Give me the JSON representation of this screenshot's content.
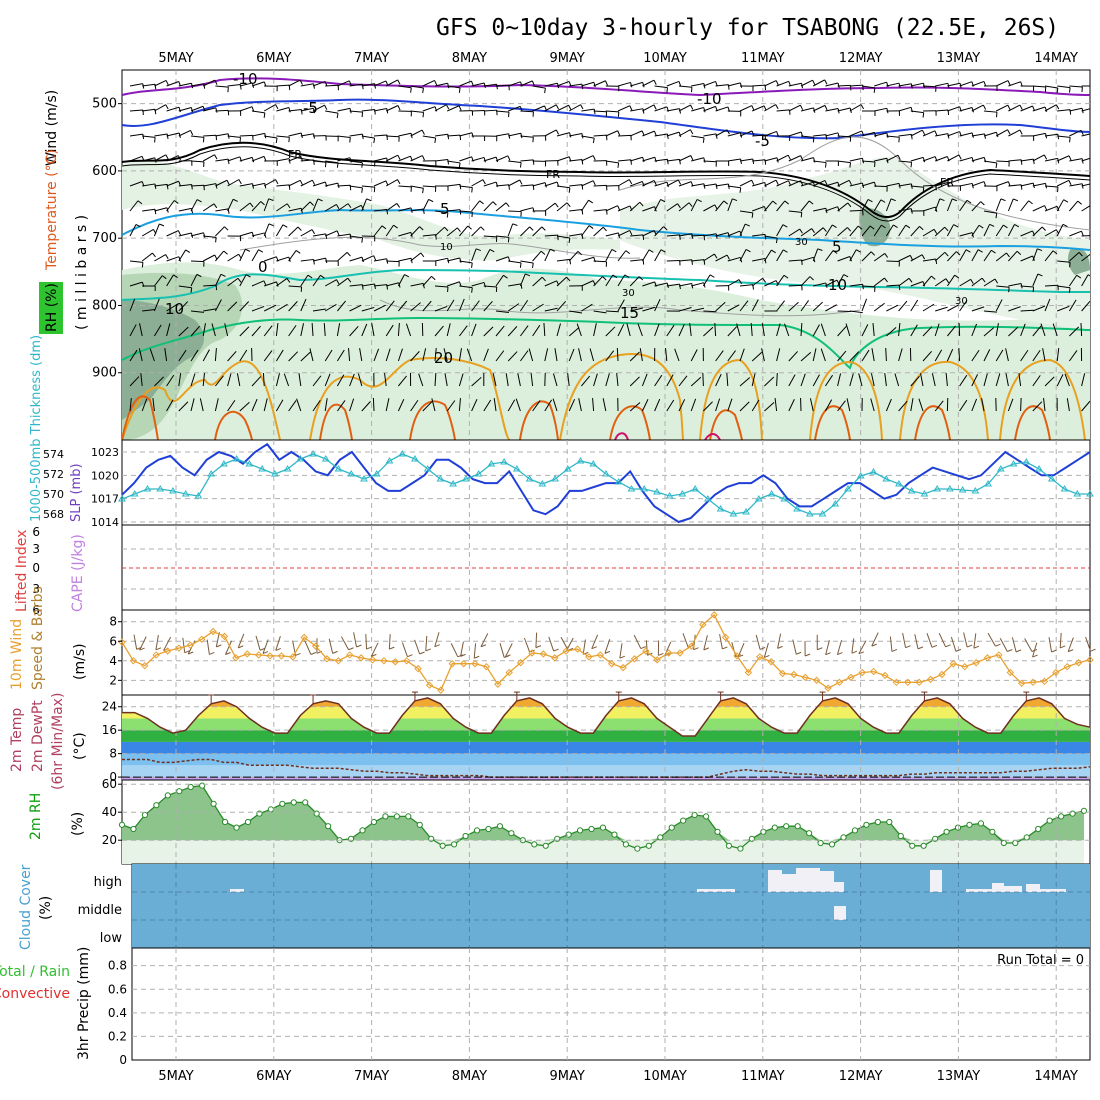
{
  "title": "GFS 0~10day 3-hourly for TSABONG (22.5E, 26S)",
  "dates": [
    "5MAY",
    "6MAY",
    "7MAY",
    "8MAY",
    "9MAY",
    "10MAY",
    "11MAY",
    "12MAY",
    "13MAY",
    "14MAY"
  ],
  "colors": {
    "purple": "#8a1ab8",
    "blue": "#1f3fd6",
    "cyan": "#1aa0e0",
    "teal": "#18c0b0",
    "green_t": "#10c078",
    "orange": "#e8a020",
    "darkorange": "#e06010",
    "rh_light": "#dcefdc",
    "rh_mid": "#b0d8b0",
    "rh_dark": "#6c9a7c",
    "cloud": "#6aaed6",
    "slp": "#1f3fd6",
    "thick": "#30b8c8",
    "wind10": "#e8a030",
    "barb": "#7a5a3a"
  },
  "labels": {
    "wind_top": "Wind (m/s)",
    "temp": "Temperature (°C)",
    "rh": "RH (%)",
    "millibars": "( m i l l i b a r s )",
    "thickness": "1000-500mb Thickness (dm)",
    "slp": "SLP (mb)",
    "lifted": "Lifted Index",
    "cape": "CAPE (J/kg)",
    "wind10": "10m Wind",
    "speed_barbs": "Speed & Barbs",
    "ms": "(m/s)",
    "t2m": "2m Temp",
    "dewpt": "2m DewPt",
    "minmax": "(6hr Min/Max)",
    "degc": "(°C)",
    "rh2m": "2m RH",
    "pct": "(%)",
    "cloud_cover": "Cloud Cover",
    "cloud_pct": "(%)",
    "precip_total": "Total / Rain",
    "precip_conv": "Convective",
    "precip3hr": "3hr Precip (mm)",
    "run_total": "Run Total = 0"
  },
  "contour_labels": {
    "m10a": "-10",
    "m10b": "-10",
    "m5a": "-5",
    "m5b": "-5",
    "fra": "FR",
    "frb": "FR",
    "frc": "FR",
    "p5a": "5",
    "p5b": "5",
    "p10a": "10",
    "p10b": "10",
    "p15": "15",
    "p20": "20",
    "p0": "0",
    "rh10": "10",
    "rh30a": "30",
    "rh30b": "30",
    "rh30c": "30"
  },
  "chart_data": [
    {
      "type": "heatmap",
      "panel": "upper-air",
      "y_axis_ticks": [
        "500",
        "600",
        "700",
        "800",
        "900"
      ],
      "ylim": [
        1000,
        450
      ],
      "temperature_levels_c": [
        -10,
        -5,
        0,
        5,
        10,
        15,
        20
      ]
    },
    {
      "type": "line",
      "panel": "slp-thickness",
      "thickness_ticks": [
        "574",
        "572",
        "570",
        "568"
      ],
      "slp_ticks": [
        "1023",
        "1020",
        "1017",
        "1014"
      ],
      "series": [
        {
          "name": "SLP (mb)",
          "values": [
            1017.5,
            1019,
            1021,
            1022,
            1022.5,
            1021,
            1020,
            1022,
            1023,
            1022.5,
            1021.5,
            1023,
            1024,
            1022,
            1023,
            1022,
            1020.5,
            1020,
            1022,
            1023,
            1021,
            1019,
            1018,
            1018,
            1019,
            1020,
            1022,
            1022,
            1021,
            1019.5,
            1019,
            1019,
            1020.5,
            1018,
            1015.5,
            1015,
            1016,
            1018,
            1018,
            1018.5,
            1019,
            1019,
            1020.5,
            1018,
            1016,
            1015,
            1014,
            1014.5,
            1016,
            1017.5,
            1018.5,
            1019,
            1019,
            1020,
            1019,
            1017,
            1016,
            1016,
            1017,
            1018,
            1019,
            1019,
            1018,
            1017,
            1017.5,
            1019,
            1020,
            1021,
            1020.5,
            1020,
            1019.5,
            1020,
            1021.5,
            1023,
            1022,
            1021,
            1020,
            1020,
            1021,
            1022,
            1023
          ]
        },
        {
          "name": "1000-500mb Thickness (dm)",
          "values": [
            569.5,
            570,
            570.5,
            570.5,
            570.3,
            570,
            569.8,
            572,
            573,
            573.5,
            573,
            572.5,
            572,
            572.5,
            573.5,
            574,
            573.5,
            572.5,
            572,
            571.5,
            572,
            573.3,
            574,
            573.5,
            572.5,
            571.5,
            571,
            571.5,
            572,
            573,
            573.2,
            572.5,
            571.5,
            571,
            571.5,
            572.5,
            573.3,
            573,
            572,
            571.2,
            570.5,
            570.5,
            570.2,
            569.8,
            570,
            570.5,
            569.5,
            568.5,
            568,
            568.2,
            569.5,
            570,
            569.5,
            568.5,
            568,
            568,
            569,
            570.5,
            571.8,
            572.2,
            571.5,
            571,
            570.3,
            570,
            570.5,
            570.5,
            570.4,
            570.3,
            571,
            572.5,
            573,
            573.2,
            572.5,
            571.5,
            570.5,
            570,
            570
          ]
        }
      ]
    },
    {
      "type": "line",
      "panel": "lifted-index-cape",
      "lifted_ticks": [
        "6",
        "3",
        "0",
        "3",
        "6"
      ]
    },
    {
      "type": "line",
      "panel": "10m-wind",
      "y_ticks": [
        "8",
        "6",
        "4",
        "2"
      ],
      "ylim": [
        0.5,
        9.2
      ],
      "series": [
        {
          "name": "Speed",
          "values": [
            5.9,
            4,
            3.5,
            4.6,
            5,
            5.3,
            5.6,
            6.2,
            7,
            6.5,
            4.3,
            4.7,
            4.6,
            4.5,
            4.5,
            4.4,
            6.4,
            5.5,
            4.2,
            4,
            4.6,
            4.3,
            4.1,
            4,
            3.9,
            4,
            3.2,
            1.5,
            1,
            3.7,
            3.7,
            3.7,
            3.4,
            1.6,
            2.8,
            3.8,
            4.8,
            4.7,
            4.3,
            5,
            5.2,
            4.4,
            4.6,
            3.7,
            3.3,
            4.2,
            5,
            4.1,
            4.8,
            4.8,
            5.5,
            7.7,
            8.7,
            6.4,
            4.5,
            2.8,
            4.4,
            3.9,
            2.7,
            2.6,
            2.3,
            2,
            1.2,
            1.8,
            2.3,
            2.8,
            2.9,
            2.5,
            1.8,
            1.8,
            1.8,
            2.1,
            2.6,
            3.7,
            3.4,
            3.8,
            4.3,
            4.6,
            2.8,
            1.7,
            1.8,
            1.9,
            2.8,
            3.4,
            3.8,
            4.1
          ]
        }
      ]
    },
    {
      "type": "area",
      "panel": "2m-temp",
      "y_ticks": [
        "24",
        "16",
        "8",
        "0"
      ],
      "ylim": [
        -1,
        28
      ],
      "series": [
        {
          "name": "2m Temp",
          "values": [
            22,
            22,
            20,
            17,
            15,
            16,
            21,
            25,
            26,
            24,
            20,
            17,
            15,
            15,
            21,
            25,
            26,
            25,
            20,
            17,
            15,
            15,
            21,
            26,
            27,
            25,
            20,
            17,
            15,
            15,
            21,
            26,
            27,
            25,
            20,
            17,
            15,
            15,
            21,
            26,
            27,
            25,
            20,
            17,
            14,
            14,
            20,
            26,
            27,
            25,
            20,
            17,
            15,
            15,
            21,
            26,
            27,
            25,
            20,
            17,
            15,
            15,
            21,
            26,
            27,
            25,
            20,
            17,
            15,
            15,
            21,
            26,
            27,
            25,
            20,
            18,
            17
          ]
        },
        {
          "name": "2m DewPt",
          "values": [
            6,
            6,
            6,
            5,
            5,
            5.5,
            6,
            6,
            5,
            5,
            4,
            4,
            4,
            4,
            3.5,
            3,
            3,
            3,
            2.5,
            2,
            2,
            1.5,
            1.5,
            1,
            0.5,
            0.5,
            0.5,
            0.5,
            0.5,
            0,
            0,
            0,
            0,
            0,
            0,
            0,
            0,
            0,
            0,
            0,
            0,
            0,
            0,
            0,
            0,
            0,
            0,
            1,
            2,
            2.5,
            2,
            2,
            1.5,
            1,
            1,
            0.5,
            0.5,
            0.5,
            0.5,
            0.5,
            0.5,
            0.5,
            1,
            1,
            1.5,
            1.5,
            1.5,
            1.5,
            1.5,
            1.5,
            2,
            2,
            2.5,
            3,
            3,
            3,
            3.5
          ]
        }
      ]
    },
    {
      "type": "area",
      "panel": "2m-rh",
      "y_ticks": [
        "60",
        "40",
        "20"
      ],
      "ylim": [
        3,
        63
      ],
      "series": [
        {
          "name": "2m RH",
          "values": [
            31,
            28,
            38,
            45,
            52,
            55,
            58,
            59,
            46,
            33,
            29,
            33,
            39,
            42,
            46,
            47,
            47,
            39,
            30,
            20,
            21,
            27,
            33,
            37,
            37,
            37,
            31,
            21,
            16,
            17,
            23,
            27,
            28,
            30,
            25,
            20,
            17,
            16,
            21,
            24,
            27,
            28,
            29,
            24,
            17,
            14,
            16,
            22,
            29,
            34,
            38,
            37,
            26,
            16,
            14,
            21,
            26,
            29,
            30,
            30,
            25,
            18,
            17,
            22,
            27,
            31,
            33,
            33,
            23,
            16,
            16,
            21,
            26,
            29,
            31,
            32,
            26,
            18,
            18,
            22,
            28,
            34,
            37,
            39,
            41
          ]
        }
      ]
    },
    {
      "type": "heatmap",
      "panel": "cloud-cover",
      "y_ticks": [
        "high",
        "middle",
        "low"
      ],
      "high_fraction_blocks_note": "mostly overcast layers with small clear gaps near 11-13 May"
    },
    {
      "type": "bar",
      "panel": "precipitation",
      "y_ticks": [
        "0.8",
        "0.6",
        "0.4",
        "0.2",
        "0"
      ],
      "ylim": [
        0,
        0.95
      ],
      "values": []
    }
  ]
}
